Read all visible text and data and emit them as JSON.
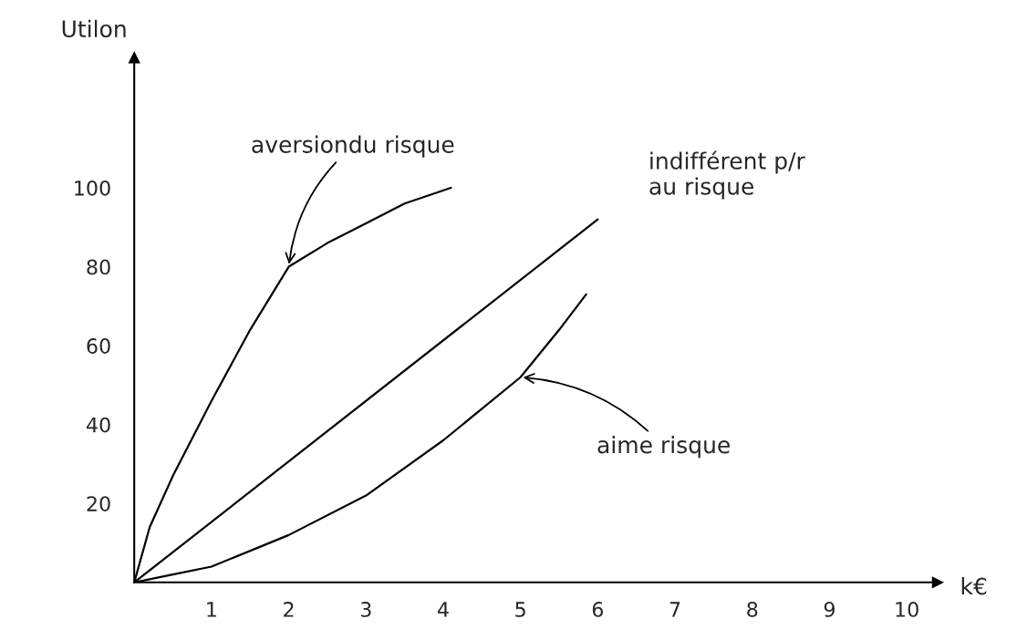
{
  "chart_data": {
    "type": "line",
    "xlabel": "k€",
    "ylabel": "Utilon",
    "xlim": [
      0,
      10.4
    ],
    "ylim": [
      0,
      133
    ],
    "xticks": [
      1,
      2,
      3,
      4,
      5,
      6,
      7,
      8,
      9,
      10
    ],
    "yticks": [
      20,
      40,
      60,
      80,
      100
    ],
    "grid": false,
    "marker": "none",
    "line_style": "solid",
    "series": [
      {
        "color": "#000000",
        "x": [
          0,
          0.2,
          0.5,
          1,
          1.5,
          2,
          2.5,
          3,
          3.5,
          4.1
        ],
        "values": [
          0,
          14,
          27,
          46,
          64,
          80,
          86,
          91,
          96,
          100
        ]
      },
      {
        "color": "#000000",
        "x": [
          0,
          6
        ],
        "values": [
          0,
          92
        ]
      },
      {
        "color": "#000000",
        "x": [
          0,
          0.5,
          1,
          2,
          3,
          4,
          5,
          5.5,
          5.85
        ],
        "values": [
          0,
          2,
          4,
          12,
          22,
          36,
          52,
          64,
          73
        ]
      }
    ],
    "annotations": [
      {
        "text": "aversiondu risque",
        "x": 2,
        "y": 80
      },
      {
        "text": "indifférent p/r\nau risque",
        "x": 6,
        "y": 92
      },
      {
        "text": "aime risque",
        "x": 5,
        "y": 52
      }
    ]
  }
}
